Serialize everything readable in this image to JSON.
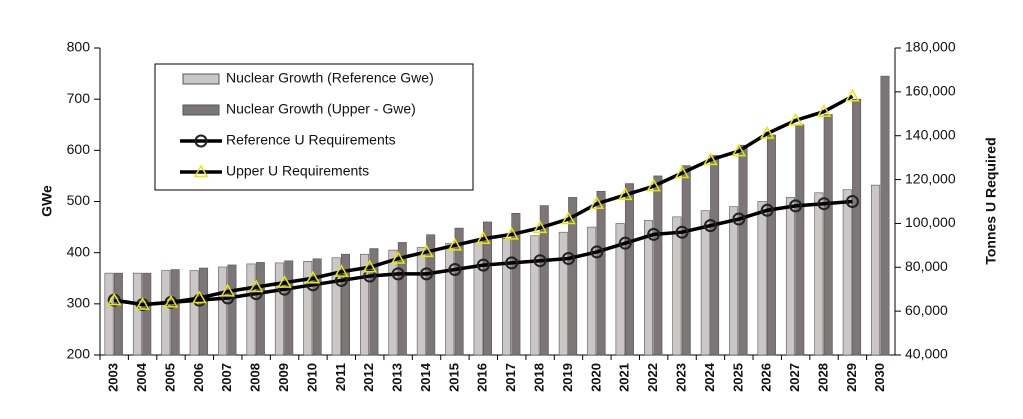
{
  "chart_data": {
    "type": "bar",
    "categories": [
      "2003",
      "2004",
      "2005",
      "2006",
      "2007",
      "2008",
      "2009",
      "2010",
      "2011",
      "2012",
      "2013",
      "2014",
      "2015",
      "2016",
      "2017",
      "2018",
      "2019",
      "2020",
      "2021",
      "2022",
      "2023",
      "2024",
      "2025",
      "2026",
      "2027",
      "2028",
      "2029",
      "2030"
    ],
    "series": [
      {
        "name": "Nuclear Growth (Reference Gwe)",
        "type": "bar",
        "color": "#cbc7c7",
        "values": [
          360,
          360,
          365,
          365,
          372,
          378,
          380,
          383,
          390,
          397,
          405,
          410,
          418,
          423,
          428,
          433,
          440,
          450,
          457,
          463,
          470,
          482,
          490,
          500,
          508,
          517,
          523,
          532
        ]
      },
      {
        "name": "Nuclear Growth (Upper - Gwe)",
        "type": "bar",
        "color": "#7d7676",
        "values": [
          360,
          360,
          367,
          370,
          376,
          381,
          384,
          388,
          397,
          408,
          420,
          435,
          448,
          460,
          477,
          492,
          508,
          520,
          535,
          550,
          570,
          590,
          610,
          630,
          650,
          670,
          700,
          745
        ]
      },
      {
        "name": "Reference U Requirements",
        "type": "line",
        "axis": "y2",
        "color": "#000000",
        "marker": "circle",
        "marker_color": "#222222",
        "values": [
          65000,
          63000,
          64000,
          65000,
          66000,
          68000,
          70000,
          72000,
          74000,
          76000,
          77000,
          77000,
          79000,
          81000,
          82000,
          83000,
          84000,
          87000,
          91000,
          95000,
          96000,
          99000,
          102000,
          106000,
          108000,
          109000,
          110000,
          null
        ]
      },
      {
        "name": "Upper U Requirements",
        "type": "line",
        "axis": "y2",
        "color": "#000000",
        "marker": "triangle",
        "marker_color": "#e8e800",
        "values": [
          65000,
          63000,
          64000,
          66000,
          69000,
          71000,
          73000,
          75000,
          78000,
          80000,
          84000,
          87000,
          90000,
          93000,
          95000,
          98000,
          102000,
          109000,
          113000,
          117000,
          123000,
          129000,
          133000,
          141000,
          147000,
          151000,
          158000,
          null
        ]
      }
    ],
    "ylabel": "GWe",
    "y2label": "Tonnes U Required",
    "ylim": [
      200,
      800
    ],
    "yticks": [
      200,
      300,
      400,
      500,
      600,
      700,
      800
    ],
    "y2lim": [
      40000,
      180000
    ],
    "y2ticks": [
      {
        "value": 40000,
        "label": "40,000"
      },
      {
        "value": 60000,
        "label": "60,000"
      },
      {
        "value": 80000,
        "label": "80,000"
      },
      {
        "value": 100000,
        "label": "100,000"
      },
      {
        "value": 120000,
        "label": "120,000"
      },
      {
        "value": 140000,
        "label": "140,000"
      },
      {
        "value": 160000,
        "label": "160,000"
      },
      {
        "value": 180000,
        "label": "180,000"
      }
    ],
    "legend": "upper left"
  }
}
